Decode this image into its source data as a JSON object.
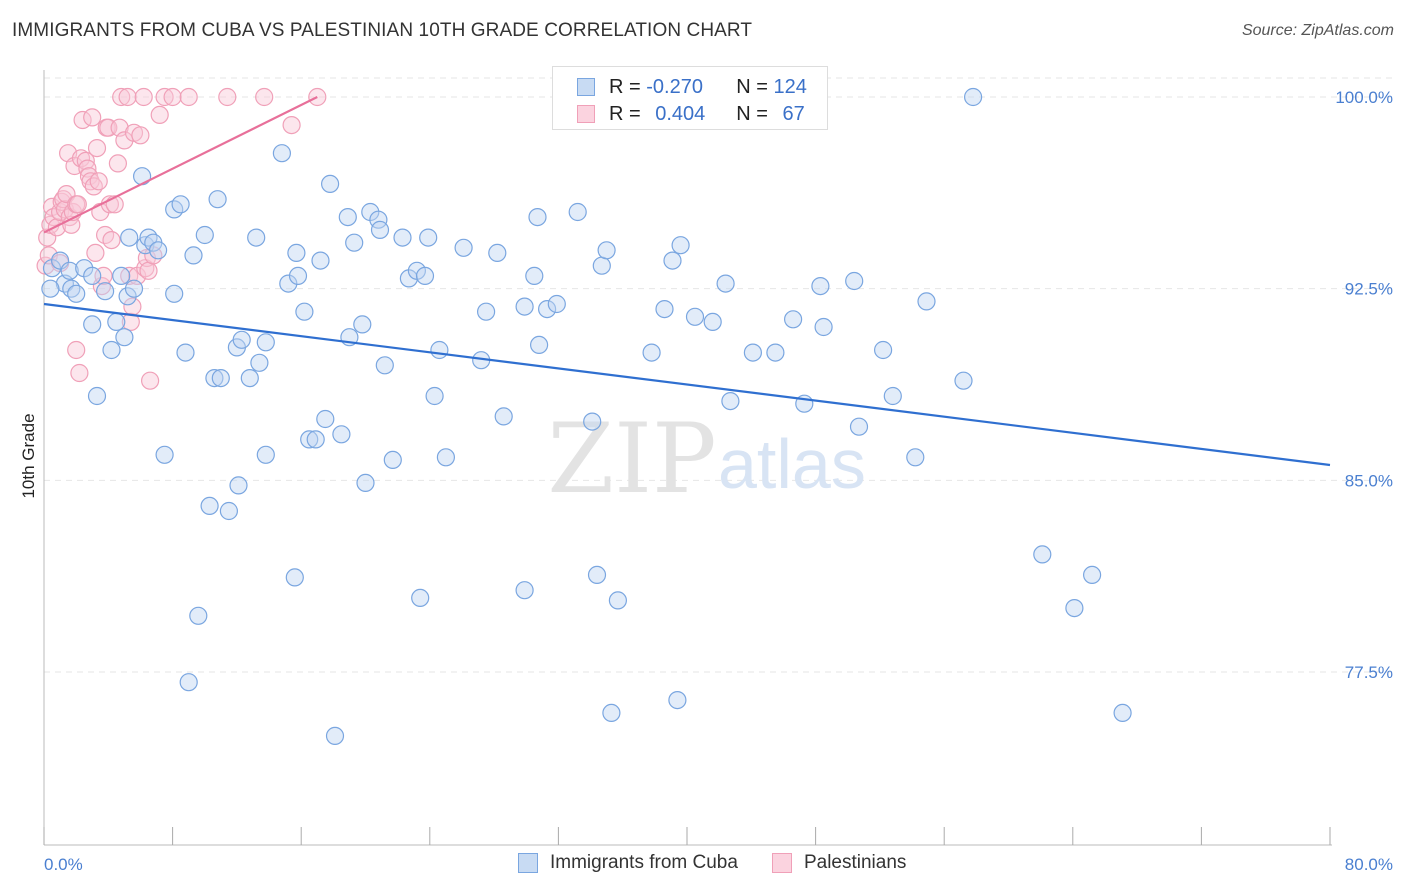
{
  "header": {
    "title": "IMMIGRANTS FROM CUBA VS PALESTINIAN 10TH GRADE CORRELATION CHART",
    "source": "Source: ZipAtlas.com"
  },
  "watermark": {
    "zip": "ZIP",
    "atlas": "atlas"
  },
  "legend_top": {
    "rows": [
      {
        "r_label": "R = ",
        "r_value": "-0.270",
        "n_label": "N = ",
        "n_value": "124",
        "color": "#7aa6e0"
      },
      {
        "r_label": "R = ",
        "r_value": "0.404",
        "n_label": "N = ",
        "n_value": "67",
        "color": "#f0a0b8"
      }
    ]
  },
  "legend_bottom": {
    "items": [
      {
        "label": "Immigrants from Cuba",
        "color": "#7aa6e0"
      },
      {
        "label": "Palestinians",
        "color": "#f0a0b8"
      }
    ]
  },
  "chart_data": {
    "type": "scatter",
    "title": "IMMIGRANTS FROM CUBA VS PALESTINIAN 10TH GRADE CORRELATION CHART",
    "xlabel": "",
    "ylabel": "10th Grade",
    "xlim": [
      0,
      80
    ],
    "ylim": [
      71.5,
      100.8
    ],
    "x_tick_labels": [
      "0.0%",
      "80.0%"
    ],
    "y_ticks": [
      77.5,
      85.0,
      92.5,
      100.0
    ],
    "y_tick_labels": [
      "77.5%",
      "85.0%",
      "92.5%",
      "100.0%"
    ],
    "grid": true,
    "legend_position": "top-center",
    "series": [
      {
        "name": "Immigrants from Cuba",
        "color": "#7aa6e0",
        "line_color": "#2f6fd0",
        "trend": {
          "x": [
            0.0,
            80.0
          ],
          "y": [
            91.9,
            85.6
          ]
        },
        "points": [
          [
            0.5,
            93.3
          ],
          [
            1.0,
            93.6
          ],
          [
            1.3,
            92.7
          ],
          [
            1.6,
            93.2
          ],
          [
            1.7,
            92.5
          ],
          [
            2.0,
            92.3
          ],
          [
            2.5,
            93.3
          ],
          [
            3.0,
            93.0
          ],
          [
            3.0,
            91.1
          ],
          [
            3.3,
            88.3
          ],
          [
            3.8,
            92.4
          ],
          [
            4.2,
            90.1
          ],
          [
            4.5,
            91.2
          ],
          [
            4.8,
            93.0
          ],
          [
            5.0,
            90.6
          ],
          [
            5.2,
            92.2
          ],
          [
            5.3,
            94.5
          ],
          [
            5.6,
            92.5
          ],
          [
            6.1,
            96.9
          ],
          [
            6.3,
            94.2
          ],
          [
            6.5,
            94.5
          ],
          [
            6.8,
            94.3
          ],
          [
            7.1,
            94.0
          ],
          [
            7.5,
            86.0
          ],
          [
            8.1,
            95.6
          ],
          [
            8.1,
            92.3
          ],
          [
            8.5,
            95.8
          ],
          [
            8.8,
            90.0
          ],
          [
            9.0,
            77.1
          ],
          [
            9.3,
            93.8
          ],
          [
            9.6,
            79.7
          ],
          [
            10.0,
            94.6
          ],
          [
            10.3,
            84.0
          ],
          [
            10.6,
            89.0
          ],
          [
            10.8,
            96.0
          ],
          [
            11.0,
            89.0
          ],
          [
            11.5,
            83.8
          ],
          [
            12.0,
            90.2
          ],
          [
            12.1,
            84.8
          ],
          [
            12.3,
            90.5
          ],
          [
            12.8,
            89.0
          ],
          [
            13.2,
            94.5
          ],
          [
            13.4,
            89.6
          ],
          [
            13.8,
            86.0
          ],
          [
            13.8,
            90.4
          ],
          [
            14.8,
            97.8
          ],
          [
            15.2,
            92.7
          ],
          [
            15.6,
            81.2
          ],
          [
            15.7,
            93.9
          ],
          [
            15.8,
            93.0
          ],
          [
            16.2,
            91.6
          ],
          [
            16.5,
            86.6
          ],
          [
            16.9,
            86.6
          ],
          [
            17.2,
            93.6
          ],
          [
            17.5,
            87.4
          ],
          [
            17.8,
            96.6
          ],
          [
            18.1,
            75.0
          ],
          [
            18.5,
            86.8
          ],
          [
            18.9,
            95.3
          ],
          [
            19.0,
            90.6
          ],
          [
            19.3,
            94.3
          ],
          [
            19.8,
            91.1
          ],
          [
            20.0,
            84.9
          ],
          [
            20.3,
            95.5
          ],
          [
            20.8,
            95.2
          ],
          [
            20.9,
            94.8
          ],
          [
            21.2,
            89.5
          ],
          [
            21.7,
            85.8
          ],
          [
            22.3,
            94.5
          ],
          [
            22.7,
            92.9
          ],
          [
            23.2,
            93.2
          ],
          [
            23.4,
            80.4
          ],
          [
            23.7,
            93.0
          ],
          [
            23.9,
            94.5
          ],
          [
            24.3,
            88.3
          ],
          [
            24.6,
            90.1
          ],
          [
            25.0,
            85.9
          ],
          [
            26.1,
            94.1
          ],
          [
            27.2,
            89.7
          ],
          [
            27.5,
            91.6
          ],
          [
            28.2,
            93.9
          ],
          [
            28.6,
            87.5
          ],
          [
            29.9,
            80.7
          ],
          [
            29.9,
            91.8
          ],
          [
            30.5,
            93.0
          ],
          [
            30.7,
            95.3
          ],
          [
            30.8,
            90.3
          ],
          [
            31.3,
            91.7
          ],
          [
            31.9,
            91.9
          ],
          [
            33.2,
            95.5
          ],
          [
            34.1,
            87.3
          ],
          [
            34.4,
            81.3
          ],
          [
            34.7,
            93.4
          ],
          [
            35.0,
            94.0
          ],
          [
            35.3,
            75.9
          ],
          [
            35.7,
            80.3
          ],
          [
            37.8,
            90.0
          ],
          [
            38.6,
            91.7
          ],
          [
            39.1,
            93.6
          ],
          [
            39.4,
            76.4
          ],
          [
            39.6,
            94.2
          ],
          [
            40.5,
            91.4
          ],
          [
            41.6,
            91.2
          ],
          [
            42.4,
            92.7
          ],
          [
            42.7,
            88.1
          ],
          [
            44.1,
            90.0
          ],
          [
            45.5,
            90.0
          ],
          [
            46.6,
            91.3
          ],
          [
            47.3,
            88.0
          ],
          [
            48.3,
            92.6
          ],
          [
            48.5,
            91.0
          ],
          [
            50.4,
            92.8
          ],
          [
            50.7,
            87.1
          ],
          [
            52.2,
            90.1
          ],
          [
            52.8,
            88.3
          ],
          [
            54.2,
            85.9
          ],
          [
            54.9,
            92.0
          ],
          [
            57.2,
            88.9
          ],
          [
            57.8,
            100.0
          ],
          [
            62.1,
            82.1
          ],
          [
            64.1,
            80.0
          ],
          [
            65.2,
            81.3
          ],
          [
            67.1,
            75.9
          ],
          [
            0.4,
            92.5
          ]
        ]
      },
      {
        "name": "Palestinians",
        "color": "#f0a0b8",
        "line_color": "#e8709a",
        "trend": {
          "x": [
            0.0,
            17.0
          ],
          "y": [
            94.7,
            100.0
          ]
        },
        "points": [
          [
            0.1,
            93.4
          ],
          [
            0.2,
            94.5
          ],
          [
            0.3,
            93.8
          ],
          [
            0.4,
            95.0
          ],
          [
            0.5,
            95.7
          ],
          [
            0.6,
            95.3
          ],
          [
            0.8,
            94.9
          ],
          [
            1.0,
            93.5
          ],
          [
            1.0,
            95.5
          ],
          [
            1.1,
            95.9
          ],
          [
            1.2,
            96.0
          ],
          [
            1.3,
            95.6
          ],
          [
            1.4,
            96.2
          ],
          [
            1.5,
            97.8
          ],
          [
            1.6,
            95.3
          ],
          [
            1.7,
            95.0
          ],
          [
            1.8,
            95.5
          ],
          [
            1.9,
            97.3
          ],
          [
            2.0,
            95.8
          ],
          [
            2.1,
            95.8
          ],
          [
            2.0,
            90.1
          ],
          [
            2.2,
            89.2
          ],
          [
            2.3,
            97.6
          ],
          [
            2.4,
            99.1
          ],
          [
            2.6,
            97.5
          ],
          [
            2.7,
            97.2
          ],
          [
            2.8,
            96.9
          ],
          [
            2.9,
            96.7
          ],
          [
            3.0,
            99.2
          ],
          [
            3.1,
            96.5
          ],
          [
            3.2,
            93.9
          ],
          [
            3.3,
            98.0
          ],
          [
            3.4,
            96.7
          ],
          [
            3.5,
            95.5
          ],
          [
            3.6,
            92.6
          ],
          [
            3.7,
            93.0
          ],
          [
            3.8,
            94.6
          ],
          [
            3.9,
            98.8
          ],
          [
            4.0,
            98.8
          ],
          [
            4.1,
            95.8
          ],
          [
            4.2,
            94.4
          ],
          [
            4.4,
            95.8
          ],
          [
            4.6,
            97.4
          ],
          [
            4.7,
            98.8
          ],
          [
            4.8,
            100.0
          ],
          [
            5.0,
            98.3
          ],
          [
            5.2,
            100.0
          ],
          [
            5.3,
            93.0
          ],
          [
            5.4,
            91.2
          ],
          [
            5.5,
            91.8
          ],
          [
            5.6,
            98.6
          ],
          [
            5.8,
            93.0
          ],
          [
            6.0,
            98.5
          ],
          [
            6.2,
            100.0
          ],
          [
            6.3,
            93.3
          ],
          [
            6.4,
            93.7
          ],
          [
            6.5,
            93.2
          ],
          [
            6.6,
            88.9
          ],
          [
            6.8,
            93.8
          ],
          [
            7.2,
            99.3
          ],
          [
            7.5,
            100.0
          ],
          [
            8.0,
            100.0
          ],
          [
            9.0,
            100.0
          ],
          [
            11.4,
            100.0
          ],
          [
            13.7,
            100.0
          ],
          [
            15.4,
            98.9
          ],
          [
            17.0,
            100.0
          ]
        ]
      }
    ]
  }
}
